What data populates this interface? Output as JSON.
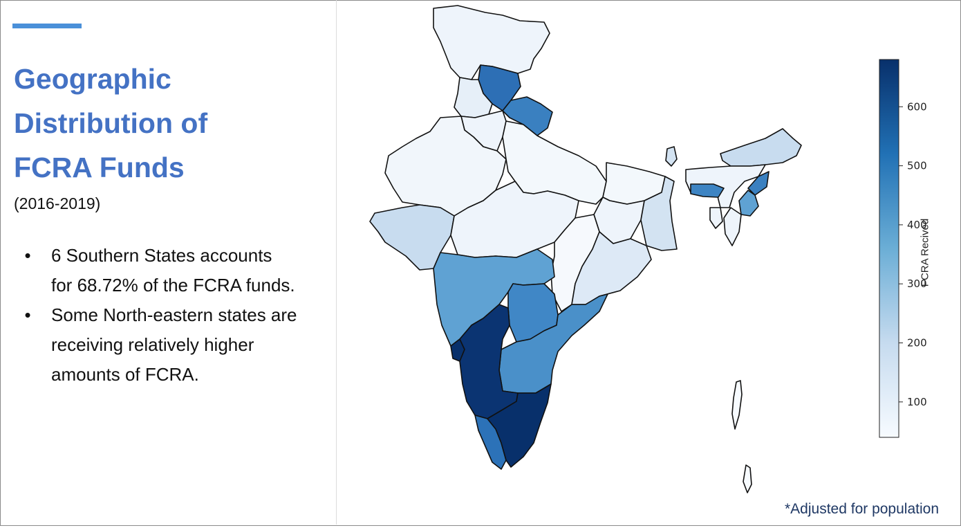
{
  "slide": {
    "title_lines": [
      "Geographic",
      "Distribution of",
      "FCRA Funds"
    ],
    "subtitle": "(2016-2019)",
    "bullets": [
      "6 Southern States accounts for 68.72% of the FCRA funds.",
      "Some North-eastern states are receiving relatively higher amounts of FCRA."
    ],
    "bullet_symbol": "•",
    "accent_color": "#4a90d9",
    "title_color": "#4472c4"
  },
  "map": {
    "footnote": "*Adjusted for population",
    "colorbar": {
      "label": "FCRA Recived",
      "ticks": [
        "600",
        "500",
        "400",
        "300",
        "200",
        "100"
      ],
      "tick_values": [
        600,
        500,
        400,
        300,
        200,
        100
      ],
      "range": [
        40,
        680
      ],
      "color_low": "#f7fbff",
      "color_high": "#08306b"
    }
  }
}
